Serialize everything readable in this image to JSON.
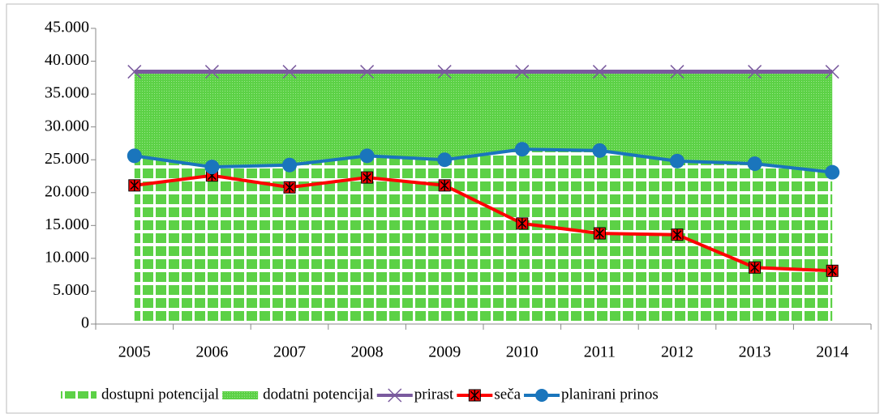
{
  "chart_data": {
    "type": "line",
    "categories": [
      "2005",
      "2006",
      "2007",
      "2008",
      "2009",
      "2010",
      "2011",
      "2012",
      "2013",
      "2014"
    ],
    "ylim": [
      0,
      45000
    ],
    "yticks": [
      0,
      {
        "value": 5000,
        "label": "5.000"
      },
      {
        "value": 10000,
        "label": "10.000"
      },
      {
        "value": 15000,
        "label": "15.000"
      },
      {
        "value": 20000,
        "label": "20.000"
      },
      {
        "value": 25000,
        "label": "25.000"
      },
      {
        "value": 30000,
        "label": "30.000"
      },
      {
        "value": 35000,
        "label": "35.000"
      },
      {
        "value": 40000,
        "label": "40.000"
      },
      {
        "value": 45000,
        "label": "45.000"
      }
    ],
    "grid": false,
    "legend": "bottom",
    "series": [
      {
        "name": "dostupni potencijal",
        "type": "area",
        "stacked": true,
        "pattern": "squares",
        "color": "#5cd146",
        "values": [
          25600,
          23900,
          24200,
          25600,
          25000,
          26600,
          26400,
          24800,
          24400,
          23100
        ]
      },
      {
        "name": "dodatni potencijal",
        "type": "area",
        "stacked": true,
        "pattern": "dots",
        "color": "#5cd146",
        "values": [
          12800,
          14500,
          14200,
          12800,
          13400,
          11800,
          12000,
          13600,
          14000,
          15300
        ]
      },
      {
        "name": "prirast",
        "type": "line",
        "marker": "x",
        "color": "#7a5a9e",
        "values": [
          38400,
          38400,
          38400,
          38400,
          38400,
          38400,
          38400,
          38400,
          38400,
          38400
        ]
      },
      {
        "name": "seča",
        "type": "line",
        "marker": "square-x",
        "color": "#ff0000",
        "values": [
          21100,
          22600,
          20800,
          22300,
          21100,
          15300,
          13800,
          13600,
          8600,
          8100
        ]
      },
      {
        "name": "planirani prinos",
        "type": "line",
        "marker": "circle",
        "color": "#1a75bc",
        "values": [
          25600,
          23900,
          24200,
          25600,
          25000,
          26600,
          26400,
          24800,
          24400,
          23100
        ]
      }
    ]
  }
}
